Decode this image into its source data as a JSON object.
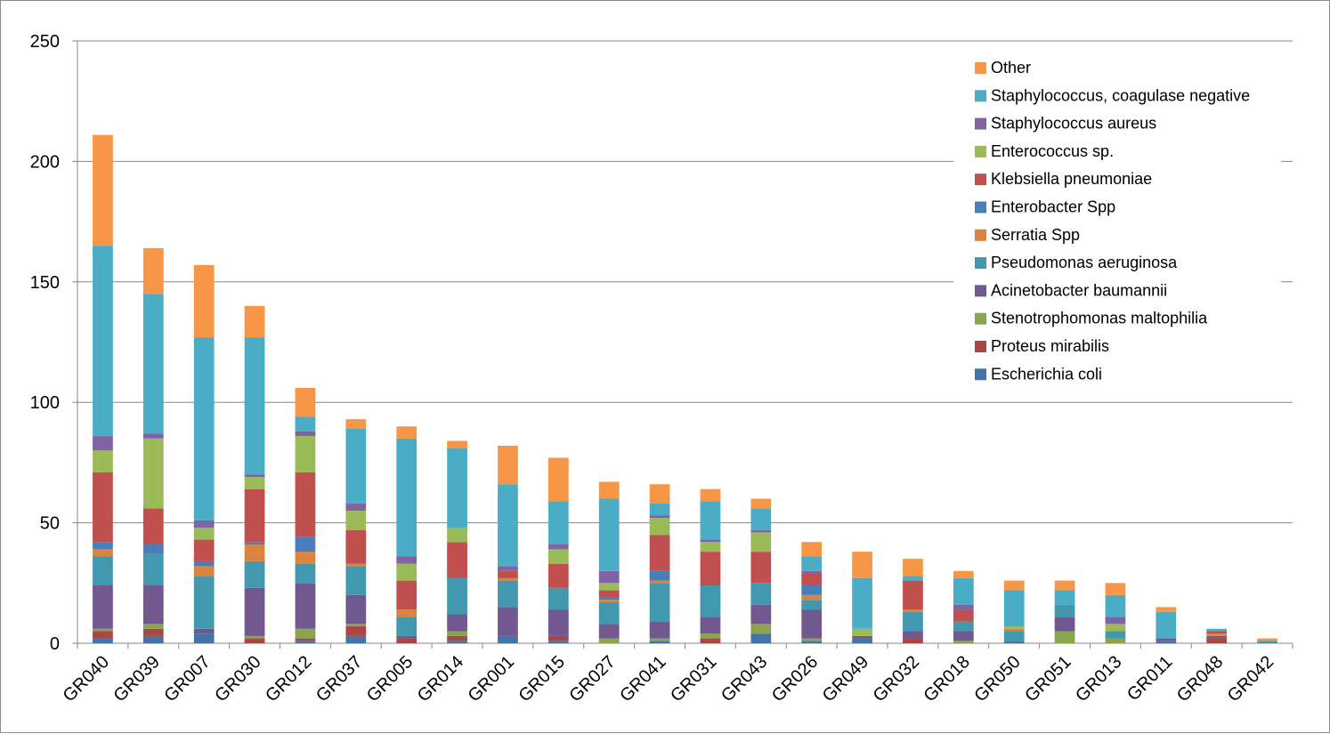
{
  "chart_data": {
    "type": "bar",
    "stacked": true,
    "title": "",
    "xlabel": "",
    "ylabel": "",
    "ylim": [
      0,
      250
    ],
    "yticks": [
      0,
      50,
      100,
      150,
      200,
      250
    ],
    "grid": true,
    "legend_position": "top-right",
    "categories": [
      "GR040",
      "GR039",
      "GR007",
      "GR030",
      "GR012",
      "GR037",
      "GR005",
      "GR014",
      "GR001",
      "GR015",
      "GR027",
      "GR041",
      "GR031",
      "GR043",
      "GR026",
      "GR049",
      "GR032",
      "GR018",
      "GR050",
      "GR051",
      "GR013",
      "GR011",
      "GR048",
      "GR042"
    ],
    "series": [
      {
        "name": "Escherichia coli",
        "color": "#4572a7",
        "values": [
          2,
          3,
          4,
          0,
          1,
          3,
          0,
          1,
          3,
          1,
          0,
          1,
          0,
          4,
          1,
          2,
          0,
          0,
          1,
          0,
          0,
          1,
          0,
          0
        ]
      },
      {
        "name": "Proteus mirabilis",
        "color": "#aa4643",
        "values": [
          3,
          3,
          0,
          2,
          1,
          4,
          2,
          2,
          0,
          2,
          0,
          0,
          2,
          0,
          0,
          0,
          2,
          0,
          0,
          0,
          0,
          0,
          2,
          0
        ]
      },
      {
        "name": "Stenotrophomonas maltophilia",
        "color": "#89a54e",
        "values": [
          1,
          2,
          0,
          1,
          4,
          1,
          0,
          2,
          0,
          0,
          2,
          1,
          2,
          4,
          1,
          0,
          0,
          1,
          0,
          5,
          2,
          0,
          0,
          0
        ]
      },
      {
        "name": "Acinetobacter baumannii",
        "color": "#71588f",
        "values": [
          18,
          16,
          2,
          20,
          19,
          12,
          1,
          7,
          12,
          11,
          6,
          7,
          7,
          8,
          12,
          1,
          3,
          4,
          0,
          6,
          0,
          1,
          1,
          0
        ]
      },
      {
        "name": "Pseudomonas aeruginosa",
        "color": "#4198af",
        "values": [
          12,
          13,
          22,
          11,
          8,
          12,
          8,
          15,
          11,
          9,
          9,
          16,
          13,
          9,
          4,
          0,
          8,
          4,
          4,
          5,
          3,
          0,
          0,
          1
        ]
      },
      {
        "name": "Serratia Spp",
        "color": "#db843d",
        "values": [
          3,
          0,
          4,
          7,
          5,
          1,
          3,
          0,
          1,
          0,
          1,
          1,
          0,
          0,
          2,
          0,
          1,
          0,
          1,
          0,
          0,
          0,
          1,
          0
        ]
      },
      {
        "name": "Enterobacter Spp",
        "color": "#4a7ebb",
        "values": [
          3,
          4,
          2,
          1,
          6,
          0,
          0,
          0,
          0,
          0,
          1,
          4,
          0,
          0,
          4,
          0,
          0,
          0,
          0,
          0,
          0,
          0,
          0,
          0
        ]
      },
      {
        "name": "Klebsiella pneumoniae",
        "color": "#c0504d",
        "values": [
          29,
          15,
          9,
          22,
          27,
          14,
          12,
          15,
          3,
          10,
          3,
          15,
          14,
          13,
          5,
          0,
          12,
          5,
          0,
          0,
          0,
          0,
          1,
          0
        ]
      },
      {
        "name": "Enterococcus sp.",
        "color": "#9bbb59",
        "values": [
          9,
          29,
          5,
          5,
          15,
          8,
          7,
          6,
          0,
          6,
          3,
          7,
          4,
          8,
          0,
          3,
          0,
          0,
          1,
          0,
          3,
          0,
          0,
          0
        ]
      },
      {
        "name": "Staphylococcus aureus",
        "color": "#8064a2",
        "values": [
          6,
          2,
          3,
          1,
          2,
          3,
          3,
          0,
          2,
          2,
          5,
          1,
          1,
          1,
          1,
          0,
          0,
          2,
          0,
          0,
          3,
          0,
          0,
          0
        ]
      },
      {
        "name": "Staphylococcus, coagulase negative",
        "color": "#4bacc6",
        "values": [
          79,
          58,
          76,
          57,
          6,
          31,
          49,
          33,
          34,
          18,
          30,
          5,
          16,
          9,
          6,
          21,
          2,
          11,
          15,
          6,
          9,
          11,
          1,
          0
        ]
      },
      {
        "name": "Other",
        "color": "#f79646",
        "values": [
          46,
          19,
          30,
          13,
          12,
          4,
          5,
          3,
          16,
          18,
          7,
          8,
          5,
          4,
          6,
          11,
          7,
          3,
          4,
          4,
          5,
          2,
          0,
          1
        ]
      }
    ]
  }
}
